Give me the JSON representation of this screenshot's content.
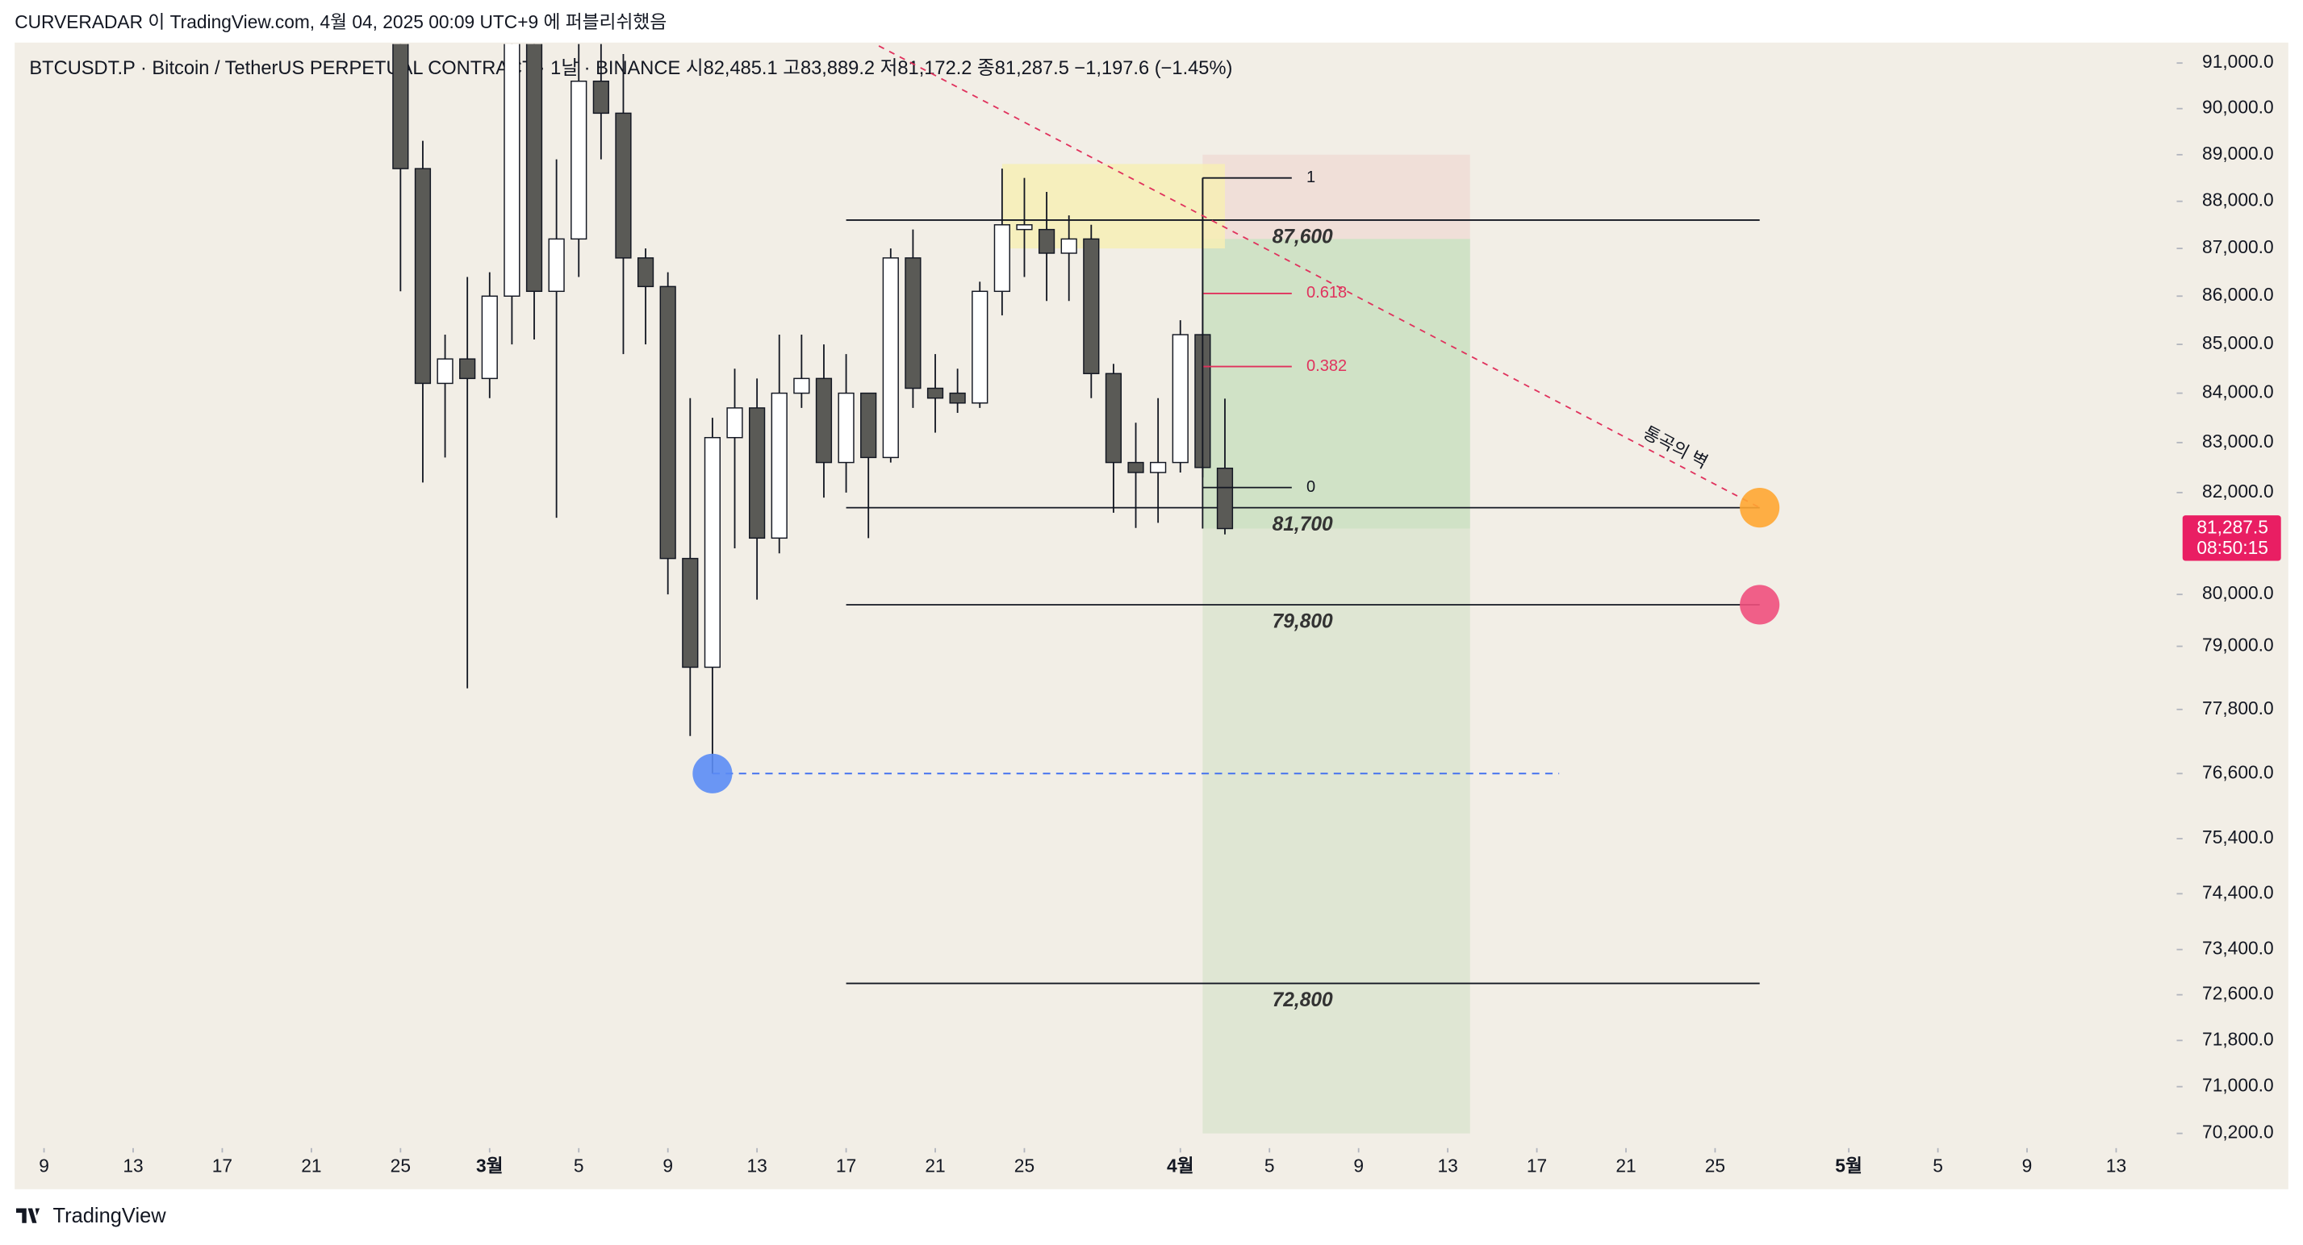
{
  "chart_data": {
    "type": "candlestick",
    "header": "CURVERADAR 이 TradingView.com, 4월 04, 2025 00:09 UTC+9 에 퍼블리쉬했음",
    "legend": "BTCUSDT.P · Bitcoin / TetherUS PERPETUAL CONTRACT · 1날 · BINANCE  시82,485.1  고83,889.2  저81,172.2  종81,287.5  −1,197.6 (−1.45%)",
    "brand": "TradingView",
    "log_scale": true,
    "up_color": "#ffffff",
    "down_color": "#5a5a56",
    "x": [
      "2025-02-25",
      "2025-02-26",
      "2025-02-27",
      "2025-02-28",
      "2025-03-01",
      "2025-03-02",
      "2025-03-03",
      "2025-03-04",
      "2025-03-05",
      "2025-03-06",
      "2025-03-07",
      "2025-03-08",
      "2025-03-09",
      "2025-03-10",
      "2025-03-11",
      "2025-03-12",
      "2025-03-13",
      "2025-03-14",
      "2025-03-15",
      "2025-03-16",
      "2025-03-17",
      "2025-03-18",
      "2025-03-19",
      "2025-03-20",
      "2025-03-21",
      "2025-03-22",
      "2025-03-23",
      "2025-03-24",
      "2025-03-25",
      "2025-03-26",
      "2025-03-27",
      "2025-03-28",
      "2025-03-29",
      "2025-03-30",
      "2025-03-31",
      "2025-04-01",
      "2025-04-02",
      "2025-04-03"
    ],
    "open": [
      91900,
      88700,
      84200,
      84700,
      84300,
      86000,
      94000,
      86100,
      87200,
      90600,
      89900,
      86800,
      86200,
      80700,
      78600,
      83100,
      83700,
      81100,
      84000,
      84300,
      82600,
      84000,
      82700,
      86800,
      84100,
      84000,
      83800,
      86100,
      87400,
      87400,
      86900,
      87200,
      84400,
      82600,
      82400,
      82600,
      85200,
      82485.1
    ],
    "high": [
      92500,
      89300,
      85200,
      86400,
      86500,
      95000,
      94500,
      88900,
      92000,
      92000,
      91200,
      87000,
      86500,
      83900,
      83500,
      84500,
      84300,
      85200,
      85200,
      85000,
      84800,
      84000,
      87000,
      87400,
      84800,
      84500,
      86300,
      88700,
      88500,
      88200,
      87700,
      87500,
      84600,
      83400,
      83900,
      85500,
      88500,
      83889.2
    ],
    "low": [
      86100,
      82200,
      82700,
      78200,
      83900,
      85000,
      85100,
      81500,
      86400,
      88900,
      84800,
      85000,
      80000,
      77300,
      76600,
      80900,
      79900,
      80800,
      83700,
      81900,
      82000,
      81100,
      82600,
      83700,
      83200,
      83600,
      83700,
      85600,
      86400,
      85900,
      85900,
      83900,
      81600,
      81300,
      81400,
      82400,
      82300,
      81172.2
    ],
    "close": [
      88700,
      84200,
      84700,
      84300,
      86000,
      94000,
      86100,
      87200,
      90600,
      89900,
      86800,
      86200,
      80700,
      78600,
      83100,
      83700,
      81100,
      84000,
      84300,
      82600,
      84000,
      82700,
      86800,
      84100,
      83900,
      83800,
      86100,
      87500,
      87500,
      86900,
      87200,
      84400,
      82600,
      82400,
      82600,
      85200,
      82500,
      81287.5
    ],
    "xlim": [
      "2025-02-08",
      "2025-05-16"
    ],
    "xticks": [
      {
        "value": "2025-02-09",
        "label": "9"
      },
      {
        "value": "2025-02-13",
        "label": "13"
      },
      {
        "value": "2025-02-17",
        "label": "17"
      },
      {
        "value": "2025-02-21",
        "label": "21"
      },
      {
        "value": "2025-02-25",
        "label": "25"
      },
      {
        "value": "2025-03-01",
        "label": "3월"
      },
      {
        "value": "2025-03-05",
        "label": "5"
      },
      {
        "value": "2025-03-09",
        "label": "9"
      },
      {
        "value": "2025-03-13",
        "label": "13"
      },
      {
        "value": "2025-03-17",
        "label": "17"
      },
      {
        "value": "2025-03-21",
        "label": "21"
      },
      {
        "value": "2025-03-25",
        "label": "25"
      },
      {
        "value": "2025-04-01",
        "label": "4월"
      },
      {
        "value": "2025-04-05",
        "label": "5"
      },
      {
        "value": "2025-04-09",
        "label": "9"
      },
      {
        "value": "2025-04-13",
        "label": "13"
      },
      {
        "value": "2025-04-17",
        "label": "17"
      },
      {
        "value": "2025-04-21",
        "label": "21"
      },
      {
        "value": "2025-04-25",
        "label": "25"
      },
      {
        "value": "2025-05-01",
        "label": "5월"
      },
      {
        "value": "2025-05-05",
        "label": "5"
      },
      {
        "value": "2025-05-09",
        "label": "9"
      },
      {
        "value": "2025-05-13",
        "label": "13"
      }
    ],
    "ylim": [
      70050,
      91420
    ],
    "yticks": [
      {
        "value": 91000,
        "label": "91,000.0"
      },
      {
        "value": 90000,
        "label": "90,000.0"
      },
      {
        "value": 89000,
        "label": "89,000.0"
      },
      {
        "value": 88000,
        "label": "88,000.0"
      },
      {
        "value": 87000,
        "label": "87,000.0"
      },
      {
        "value": 86000,
        "label": "86,000.0"
      },
      {
        "value": 85000,
        "label": "85,000.0"
      },
      {
        "value": 84000,
        "label": "84,000.0"
      },
      {
        "value": 83000,
        "label": "83,000.0"
      },
      {
        "value": 82000,
        "label": "82,000.0"
      },
      {
        "value": 80000,
        "label": "80,000.0"
      },
      {
        "value": 79000,
        "label": "79,000.0"
      },
      {
        "value": 77800,
        "label": "77,800.0"
      },
      {
        "value": 76600,
        "label": "76,600.0"
      },
      {
        "value": 75400,
        "label": "75,400.0"
      },
      {
        "value": 74400,
        "label": "74,400.0"
      },
      {
        "value": 73400,
        "label": "73,400.0"
      },
      {
        "value": 72600,
        "label": "72,600.0"
      },
      {
        "value": 71800,
        "label": "71,800.0"
      },
      {
        "value": 71000,
        "label": "71,000.0"
      },
      {
        "value": 70200,
        "label": "70,200.0"
      }
    ],
    "price_tag": {
      "value": 81287.5,
      "label": "81,287.5",
      "countdown": "08:50:15",
      "color": "#e91e63"
    },
    "drawings": {
      "levels": [
        {
          "value": 87600,
          "label": "87,600"
        },
        {
          "value": 81700,
          "label": "81,700"
        },
        {
          "value": 79800,
          "label": "79,800"
        },
        {
          "value": 72800,
          "label": "72,800"
        }
      ],
      "levels_from": "2025-03-17",
      "levels_to": "2025-04-27",
      "zone": {
        "from": "2025-03-24",
        "to": "2025-04-03",
        "top": 88800,
        "bottom": 87000,
        "color": "#f7eeb5"
      },
      "position": {
        "from": "2025-04-02",
        "to": "2025-04-14",
        "stop": 89000,
        "entry": 87200,
        "target": 70200
      },
      "fib": {
        "from": "2025-04-02",
        "to": "2025-04-06",
        "high": 88500,
        "low": 82100,
        "levels": [
          1,
          0.618,
          0.382,
          0
        ],
        "colors": [
          "#131722",
          "#e0325d",
          "#e0325d",
          "#131722"
        ]
      },
      "trend": {
        "from": [
          "2025-03-18",
          91500
        ],
        "to": [
          "2025-04-27",
          81700
        ],
        "color": "#e0325d",
        "label": "통곡의 벽"
      },
      "markers": [
        {
          "date": "2025-04-27",
          "value": 81700,
          "color": "#ffa632"
        },
        {
          "date": "2025-04-27",
          "value": 79800,
          "color": "#ef4f7d"
        },
        {
          "date": "2025-03-11",
          "value": 76600,
          "color": "#5b8cf5"
        }
      ],
      "support": {
        "from": "2025-03-11",
        "to": "2025-04-18",
        "value": 76600,
        "color": "#3d6cf0"
      }
    }
  }
}
